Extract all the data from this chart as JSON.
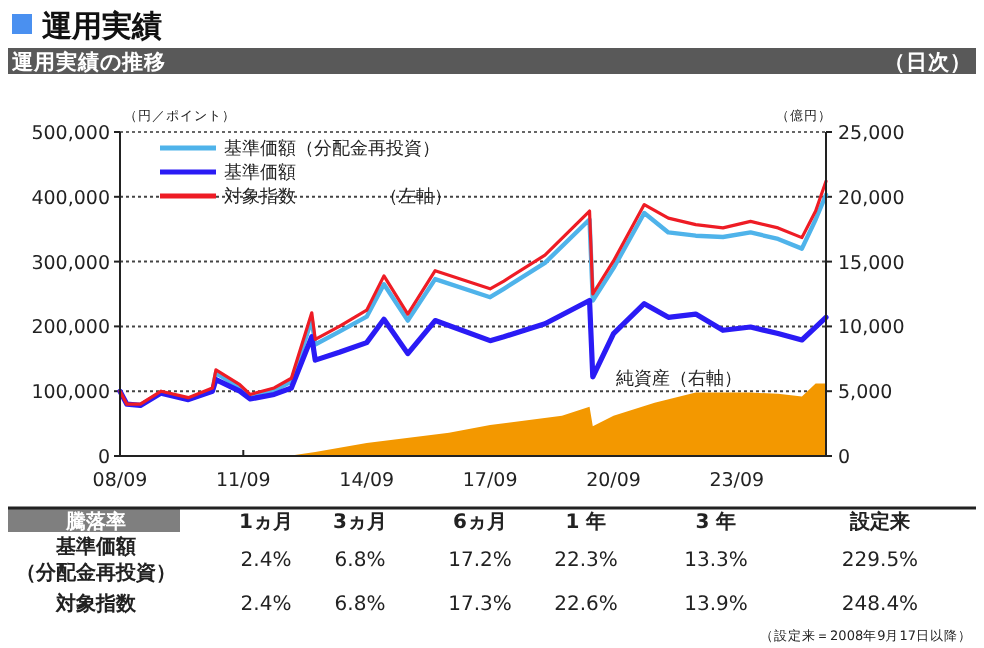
{
  "chart_data": {
    "type": "line",
    "title": "運用実績",
    "subtitle": "運用実績の推移",
    "ylabel": "（円／ポイント）",
    "y2label": "（億円）",
    "annotations": [
      "（日次）",
      "（左軸）",
      "騰落率",
      "1ヵ月",
      "3ヵ月",
      "6ヵ月",
      "1 年",
      "3 年",
      "設定来",
      "基準価額（分配金再投資）",
      "2.4%",
      "6.8%",
      "17.2%",
      "22.3%",
      "13.3%",
      "229.5%",
      "対象指数",
      "2.4%",
      "6.8%",
      "17.3%",
      "22.6%",
      "13.9%",
      "248.4%",
      "（設定来＝2008年9月17日以降）"
    ],
    "x": [
      "2008-09",
      "2008-11",
      "2009-03",
      "2009-09",
      "2010-05",
      "2010-12",
      "2011-01",
      "2011-08",
      "2011-11",
      "2012-06",
      "2012-11",
      "2013-05",
      "2013-06",
      "2014-01",
      "2014-09",
      "2015-02",
      "2015-09",
      "2016-05",
      "2017-09",
      "2018-01",
      "2019-01",
      "2020-02",
      "2020-03",
      "2020-09",
      "2021-06",
      "2022-01",
      "2022-09",
      "2023-05",
      "2024-01",
      "2024-09",
      "2025-04",
      "2025-08",
      "2025-11"
    ],
    "series": [
      {
        "name": "純資産（右軸）",
        "type": "area",
        "axis": "y2",
        "color": "#f39800",
        "x": [
          "2008-09",
          "2012-10",
          "2013-06",
          "2014-09",
          "2016-09",
          "2017-09",
          "2019-06",
          "2020-02",
          "2020-03",
          "2020-09",
          "2021-09",
          "2022-09",
          "2024-01",
          "2024-09",
          "2025-04",
          "2025-08",
          "2025-11"
        ],
        "values": [
          0,
          0,
          300,
          1000,
          1800,
          2400,
          3100,
          3800,
          2300,
          3100,
          4100,
          4900,
          4900,
          4800,
          4600,
          5600,
          5600
        ]
      },
      {
        "name": "基準価額（分配金再投資）",
        "color": "#4fb3ea",
        "values": [
          null,
          null,
          null,
          null,
          88000,
          102000,
          128000,
          106000,
          92000,
          101000,
          115000,
          210000,
          172000,
          192000,
          215000,
          265000,
          209000,
          273000,
          245000,
          258000,
          298000,
          365000,
          240000,
          290000,
          375000,
          345000,
          340000,
          338000,
          345000,
          335000,
          320000,
          365000,
          403000
        ]
      },
      {
        "name": "基準価額",
        "color": "#2a1bf5",
        "values": [
          100000,
          80000,
          78000,
          97000,
          87000,
          100000,
          118000,
          100000,
          88000,
          95000,
          105000,
          184000,
          148000,
          160000,
          175000,
          211000,
          158000,
          209000,
          178000,
          184000,
          204000,
          240000,
          122000,
          189000,
          235000,
          214000,
          219000,
          194000,
          199000,
          189000,
          179000,
          199000,
          214000
        ]
      },
      {
        "name": "対象指数",
        "color": "#ee1c25",
        "values": [
          100000,
          80000,
          80000,
          100000,
          90000,
          105000,
          133000,
          110000,
          95000,
          105000,
          120000,
          221000,
          180000,
          200000,
          225000,
          278000,
          219000,
          286000,
          258000,
          270000,
          310000,
          378000,
          250000,
          301000,
          388000,
          367000,
          357000,
          352000,
          362000,
          352000,
          337000,
          378000,
          424000
        ]
      }
    ],
    "xlim": [
      "2008-09",
      "2025-11"
    ],
    "xticks": [
      {
        "value": "2008-09",
        "label": "08/09"
      },
      {
        "value": "2011-09",
        "label": "11/09"
      },
      {
        "value": "2014-09",
        "label": "14/09"
      },
      {
        "value": "2017-09",
        "label": "17/09"
      },
      {
        "value": "2020-09",
        "label": "20/09"
      },
      {
        "value": "2023-09",
        "label": "23/09"
      }
    ],
    "ylim": [
      0,
      500000
    ],
    "yticks": [
      {
        "value": 0,
        "label": "0"
      },
      {
        "value": 100000,
        "label": "100,000"
      },
      {
        "value": 200000,
        "label": "200,000"
      },
      {
        "value": 300000,
        "label": "300,000"
      },
      {
        "value": 400000,
        "label": "400,000"
      },
      {
        "value": 500000,
        "label": "500,000"
      }
    ],
    "y2lim": [
      0,
      25000
    ],
    "y2ticks": [
      {
        "value": 0,
        "label": "0"
      },
      {
        "value": 5000,
        "label": "5,000"
      },
      {
        "value": 10000,
        "label": "10,000"
      },
      {
        "value": 15000,
        "label": "15,000"
      },
      {
        "value": 20000,
        "label": "20,000"
      },
      {
        "value": 25000,
        "label": "25,000"
      }
    ],
    "grid": "y",
    "legend": "top left"
  }
}
